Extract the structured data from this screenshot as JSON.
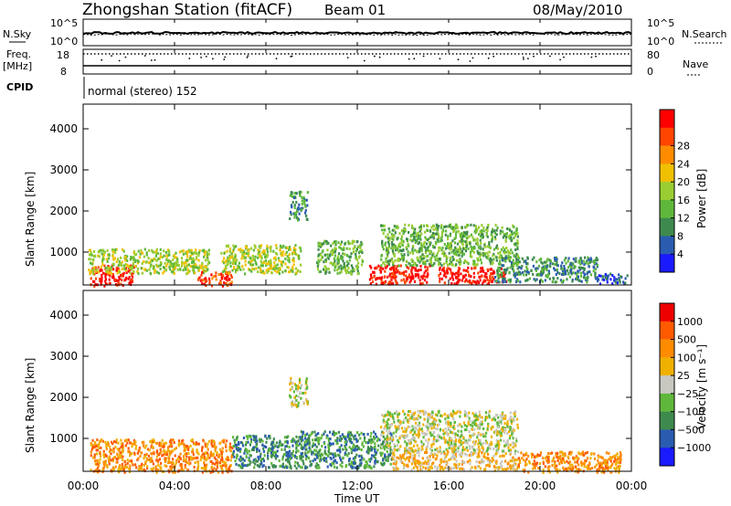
{
  "header": {
    "station": "Zhongshan Station (fitACF)",
    "beam": "Beam 01",
    "date": "08/May/2010"
  },
  "summary_panels": {
    "nsky_label": "N.Sky",
    "nsearch_label": "N.Search",
    "nsky_ticks": [
      "10^5",
      "10^0"
    ],
    "nsearch_ticks": [
      "10^5",
      "10^0"
    ],
    "freq_label_1": "Freq.",
    "freq_label_2": "[MHz]",
    "freq_ticks": [
      "18",
      "8"
    ],
    "nave_label": "Nave",
    "nave_ticks": [
      "80",
      "0"
    ],
    "cpid_label": "CPID",
    "cpid_text": "normal (stereo) 152"
  },
  "colors": {
    "power": [
      "#1a1aff",
      "#2a5cb0",
      "#3e8a4e",
      "#5fb83b",
      "#9acd32",
      "#f0c000",
      "#ff8c00",
      "#ff4500",
      "#ff0000"
    ],
    "velocity": [
      "#ee0000",
      "#ff5a00",
      "#ff8c00",
      "#f0b000",
      "#c8c8c0",
      "#5fb83b",
      "#3e8a4e",
      "#2a5cb0",
      "#1a1aff"
    ]
  },
  "chart_data": [
    {
      "type": "heatmap",
      "name": "power",
      "ylabel": "Slant Range [km]",
      "yticks": [
        "1000",
        "2000",
        "3000",
        "4000"
      ],
      "ylim": [
        200,
        4600
      ],
      "xlim": [
        0,
        24
      ],
      "colorbar_label": "Power [dB]",
      "colorbar_ticks": [
        "4",
        "8",
        "12",
        "16",
        "20",
        "24",
        "28"
      ],
      "colorbar_range": [
        0,
        32
      ],
      "regions": [
        {
          "t0": 0.3,
          "t1": 2.2,
          "r0": 200,
          "r1": 700,
          "level": 8
        },
        {
          "t0": 0.2,
          "t1": 5.5,
          "r0": 500,
          "r1": 1100,
          "level": 4
        },
        {
          "t0": 5.0,
          "t1": 6.5,
          "r0": 200,
          "r1": 550,
          "level": 7
        },
        {
          "t0": 6.0,
          "t1": 9.5,
          "r0": 500,
          "r1": 1200,
          "level": 4
        },
        {
          "t0": 9.0,
          "t1": 9.8,
          "r0": 1800,
          "r1": 2500,
          "level": 2
        },
        {
          "t0": 10.2,
          "t1": 12.2,
          "r0": 500,
          "r1": 1300,
          "level": 3
        },
        {
          "t0": 12.5,
          "t1": 15.2,
          "r0": 250,
          "r1": 700,
          "level": 8
        },
        {
          "t0": 13.0,
          "t1": 19.0,
          "r0": 700,
          "r1": 1700,
          "level": 3
        },
        {
          "t0": 15.5,
          "t1": 18.5,
          "r0": 250,
          "r1": 650,
          "level": 8
        },
        {
          "t0": 18.0,
          "t1": 22.5,
          "r0": 300,
          "r1": 900,
          "level": 2
        },
        {
          "t0": 22.5,
          "t1": 23.8,
          "r0": 250,
          "r1": 500,
          "level": 1
        }
      ]
    },
    {
      "type": "heatmap",
      "name": "velocity",
      "ylabel": "Slant Range [km]",
      "yticks": [
        "1000",
        "2000",
        "3000",
        "4000"
      ],
      "ylim": [
        200,
        4600
      ],
      "xlim": [
        0,
        24
      ],
      "xlabel": "Time UT",
      "xticks": [
        "00:00",
        "04:00",
        "08:00",
        "12:00",
        "16:00",
        "20:00",
        "00:00"
      ],
      "colorbar_label": "Velocity [m s⁻¹]",
      "colorbar_ticks": [
        "1000",
        "500",
        "100",
        "25",
        "-25",
        "-100",
        "-500",
        "-1000"
      ],
      "regions": [
        {
          "t0": 0.3,
          "t1": 6.5,
          "r0": 200,
          "r1": 1000,
          "level": 2
        },
        {
          "t0": 6.5,
          "t1": 9.5,
          "r0": 300,
          "r1": 1100,
          "level": 6
        },
        {
          "t0": 9.0,
          "t1": 9.8,
          "r0": 1800,
          "r1": 2500,
          "level": 4
        },
        {
          "t0": 9.5,
          "t1": 13.5,
          "r0": 300,
          "r1": 1200,
          "level": 6
        },
        {
          "t0": 13.0,
          "t1": 19.0,
          "r0": 700,
          "r1": 1700,
          "level": 4
        },
        {
          "t0": 13.5,
          "t1": 19.0,
          "r0": 250,
          "r1": 700,
          "level": 3
        },
        {
          "t0": 19.0,
          "t1": 23.5,
          "r0": 200,
          "r1": 700,
          "level": 2
        }
      ]
    }
  ]
}
